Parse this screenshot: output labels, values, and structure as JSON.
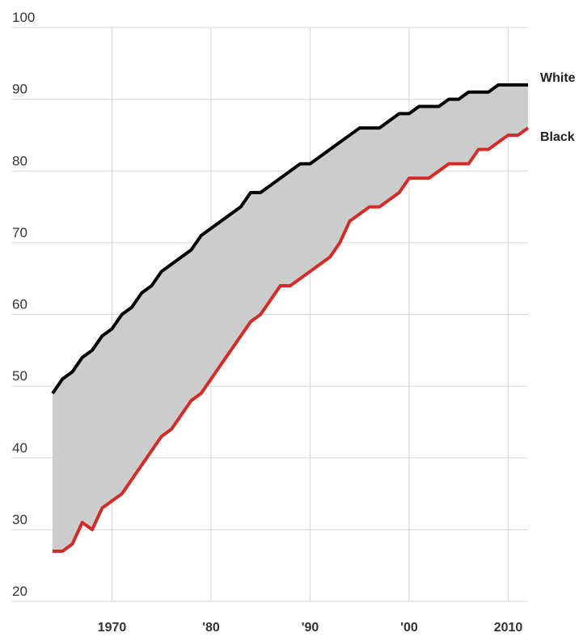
{
  "chart_data": {
    "type": "line",
    "title": "",
    "xlabel": "",
    "ylabel": "",
    "xlim": [
      1964,
      2012
    ],
    "ylim": [
      20,
      100
    ],
    "grid": true,
    "fill_between_series": true,
    "y_ticks": [
      {
        "value": 20,
        "label": "20"
      },
      {
        "value": 30,
        "label": "30"
      },
      {
        "value": 40,
        "label": "40"
      },
      {
        "value": 50,
        "label": "50"
      },
      {
        "value": 60,
        "label": "60"
      },
      {
        "value": 70,
        "label": "70"
      },
      {
        "value": 80,
        "label": "80"
      },
      {
        "value": 90,
        "label": "90"
      },
      {
        "value": 100,
        "label": "100"
      }
    ],
    "x_ticks": [
      {
        "value": 1970,
        "label": "1970"
      },
      {
        "value": 1980,
        "label": "'80"
      },
      {
        "value": 1990,
        "label": "'90"
      },
      {
        "value": 2000,
        "label": "'00"
      },
      {
        "value": 2010,
        "label": "2010"
      }
    ],
    "x": [
      1964,
      1965,
      1966,
      1967,
      1968,
      1969,
      1970,
      1971,
      1972,
      1973,
      1974,
      1975,
      1976,
      1977,
      1978,
      1979,
      1980,
      1981,
      1982,
      1983,
      1984,
      1985,
      1986,
      1987,
      1988,
      1989,
      1990,
      1991,
      1992,
      1993,
      1994,
      1995,
      1996,
      1997,
      1998,
      1999,
      2000,
      2001,
      2002,
      2003,
      2004,
      2005,
      2006,
      2007,
      2008,
      2009,
      2010,
      2011,
      2012
    ],
    "series": [
      {
        "name": "White",
        "color": "#000000",
        "values": [
          49,
          51,
          52,
          54,
          55,
          57,
          58,
          60,
          61,
          63,
          64,
          66,
          67,
          68,
          69,
          71,
          72,
          73,
          74,
          75,
          77,
          77,
          78,
          79,
          80,
          81,
          81,
          82,
          83,
          84,
          85,
          86,
          86,
          86,
          87,
          88,
          88,
          89,
          89,
          89,
          90,
          90,
          91,
          91,
          91,
          92,
          92,
          92,
          92
        ]
      },
      {
        "name": "Black",
        "color": "#d42b27",
        "values": [
          27,
          27,
          28,
          31,
          30,
          33,
          34,
          35,
          37,
          39,
          41,
          43,
          44,
          46,
          48,
          49,
          51,
          53,
          55,
          57,
          59,
          60,
          62,
          64,
          64,
          65,
          66,
          67,
          68,
          70,
          73,
          74,
          75,
          75,
          76,
          77,
          79,
          79,
          79,
          80,
          81,
          81,
          81,
          83,
          83,
          84,
          85,
          85,
          86
        ]
      }
    ],
    "fill_color": "#cccccc"
  }
}
